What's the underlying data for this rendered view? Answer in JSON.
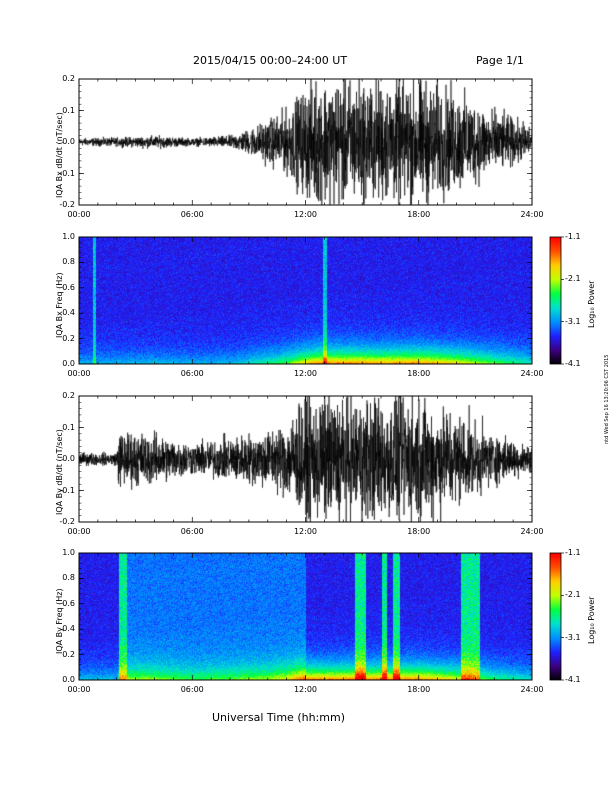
{
  "header": {
    "title": "2015/04/15  00:00–24:00 UT",
    "page": "Page 1/1"
  },
  "footer": {
    "xlabel": "Universal Time (hh:mm)"
  },
  "side_stamp": "ntd Wed Sep 16 13:20:06 CST 2015",
  "x_ticks": [
    "00:00",
    "06:00",
    "12:00",
    "18:00",
    "24:00"
  ],
  "colorbar": {
    "ticks": [
      "-1.1",
      "-2.1",
      "-3.1",
      "-4.1"
    ],
    "label": "Log₁₀ Power",
    "colors": [
      "#000000",
      "#3c0080",
      "#2020ff",
      "#0090ff",
      "#00e0d0",
      "#00ff40",
      "#c0ff00",
      "#ffd000",
      "#ff5000",
      "#ff0000"
    ]
  },
  "chart_data": [
    {
      "type": "line",
      "ylabel": "IQA Bx dB/dt (nT/sec)",
      "x_range": [
        0,
        24
      ],
      "ylim": [
        -0.2,
        0.2
      ],
      "y_ticks": [
        "0.2",
        "0.1",
        "0.0",
        "-0.1",
        "-0.2"
      ],
      "envelope": {
        "hours": [
          0,
          2,
          4,
          6,
          8,
          9,
          10,
          11,
          11.7,
          12.5,
          14,
          16,
          18,
          20,
          22,
          24
        ],
        "amplitude": [
          0.012,
          0.014,
          0.02,
          0.012,
          0.02,
          0.04,
          0.07,
          0.1,
          0.15,
          0.2,
          0.2,
          0.19,
          0.2,
          0.16,
          0.1,
          0.05
        ]
      }
    },
    {
      "type": "heatmap",
      "ylabel": "IQA Bx Freq (Hz)",
      "x_range": [
        0,
        24
      ],
      "ylim": [
        0,
        1
      ],
      "y_ticks": [
        "1.0",
        "0.8",
        "0.6",
        "0.4",
        "0.2",
        "0.0"
      ]
    },
    {
      "type": "line",
      "ylabel": "IQA By dB/dt (nT/sec)",
      "x_range": [
        0,
        24
      ],
      "ylim": [
        -0.2,
        0.2
      ],
      "y_ticks": [
        "0.2",
        "0.1",
        "0.0",
        "-0.1",
        "-0.2"
      ],
      "envelope": {
        "hours": [
          0,
          2,
          2.1,
          4,
          6,
          8,
          10,
          11,
          12,
          13,
          15,
          18,
          20,
          22,
          24
        ],
        "amplitude": [
          0.02,
          0.02,
          0.09,
          0.08,
          0.05,
          0.07,
          0.09,
          0.12,
          0.2,
          0.2,
          0.2,
          0.2,
          0.15,
          0.08,
          0.04
        ]
      }
    },
    {
      "type": "heatmap",
      "ylabel": "IQA By Freq (Hz)",
      "x_range": [
        0,
        24
      ],
      "ylim": [
        0,
        1
      ],
      "y_ticks": [
        "1.0",
        "0.8",
        "0.6",
        "0.4",
        "0.2",
        "0.0"
      ]
    }
  ]
}
